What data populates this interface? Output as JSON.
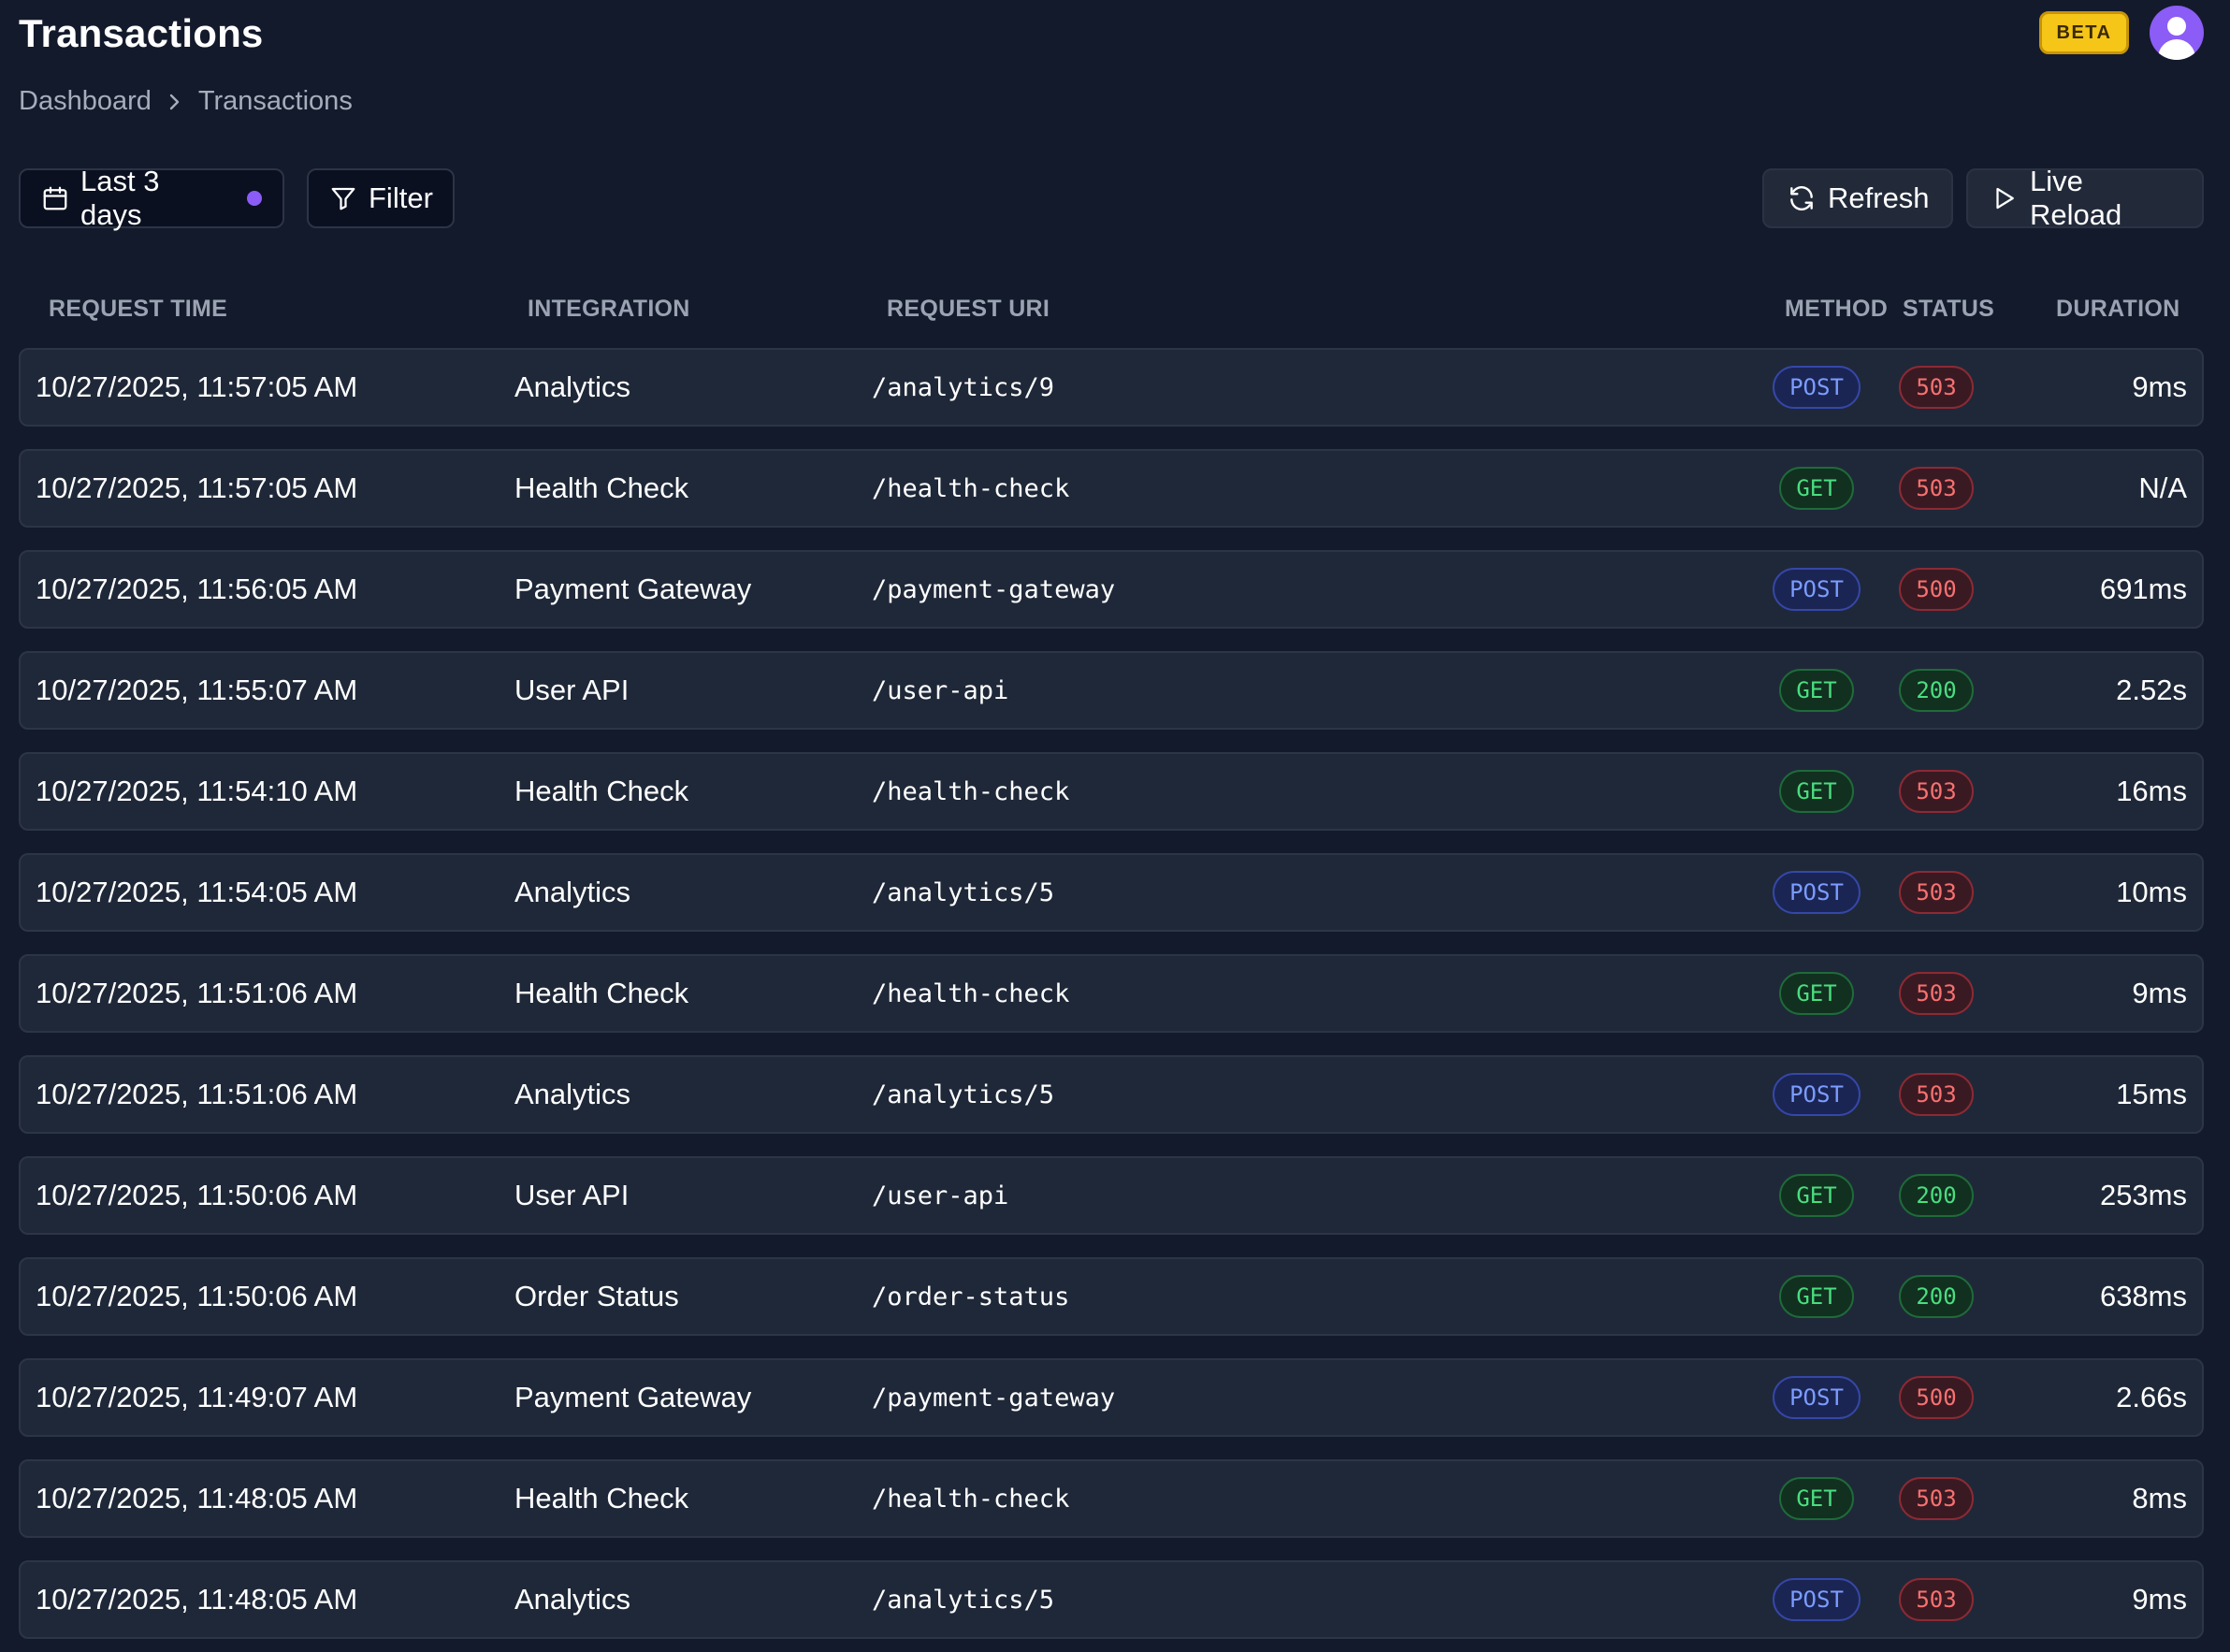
{
  "header": {
    "title": "Transactions",
    "beta_label": "BETA"
  },
  "breadcrumb": {
    "items": [
      "Dashboard",
      "Transactions"
    ]
  },
  "toolbar": {
    "date_range_label": "Last 3 days",
    "filter_label": "Filter",
    "refresh_label": "Refresh",
    "live_reload_label": "Live Reload"
  },
  "table": {
    "columns": {
      "request_time": "REQUEST TIME",
      "integration": "INTEGRATION",
      "request_uri": "REQUEST URI",
      "method": "METHOD",
      "status": "STATUS",
      "duration": "DURATION"
    },
    "rows": [
      {
        "time": "10/27/2025, 11:57:05 AM",
        "integration": "Analytics",
        "uri": "/analytics/9",
        "method": "POST",
        "status": "503",
        "duration": "9ms"
      },
      {
        "time": "10/27/2025, 11:57:05 AM",
        "integration": "Health Check",
        "uri": "/health-check",
        "method": "GET",
        "status": "503",
        "duration": "N/A"
      },
      {
        "time": "10/27/2025, 11:56:05 AM",
        "integration": "Payment Gateway",
        "uri": "/payment-gateway",
        "method": "POST",
        "status": "500",
        "duration": "691ms"
      },
      {
        "time": "10/27/2025, 11:55:07 AM",
        "integration": "User API",
        "uri": "/user-api",
        "method": "GET",
        "status": "200",
        "duration": "2.52s"
      },
      {
        "time": "10/27/2025, 11:54:10 AM",
        "integration": "Health Check",
        "uri": "/health-check",
        "method": "GET",
        "status": "503",
        "duration": "16ms"
      },
      {
        "time": "10/27/2025, 11:54:05 AM",
        "integration": "Analytics",
        "uri": "/analytics/5",
        "method": "POST",
        "status": "503",
        "duration": "10ms"
      },
      {
        "time": "10/27/2025, 11:51:06 AM",
        "integration": "Health Check",
        "uri": "/health-check",
        "method": "GET",
        "status": "503",
        "duration": "9ms"
      },
      {
        "time": "10/27/2025, 11:51:06 AM",
        "integration": "Analytics",
        "uri": "/analytics/5",
        "method": "POST",
        "status": "503",
        "duration": "15ms"
      },
      {
        "time": "10/27/2025, 11:50:06 AM",
        "integration": "User API",
        "uri": "/user-api",
        "method": "GET",
        "status": "200",
        "duration": "253ms"
      },
      {
        "time": "10/27/2025, 11:50:06 AM",
        "integration": "Order Status",
        "uri": "/order-status",
        "method": "GET",
        "status": "200",
        "duration": "638ms"
      },
      {
        "time": "10/27/2025, 11:49:07 AM",
        "integration": "Payment Gateway",
        "uri": "/payment-gateway",
        "method": "POST",
        "status": "500",
        "duration": "2.66s"
      },
      {
        "time": "10/27/2025, 11:48:05 AM",
        "integration": "Health Check",
        "uri": "/health-check",
        "method": "GET",
        "status": "503",
        "duration": "8ms"
      },
      {
        "time": "10/27/2025, 11:48:05 AM",
        "integration": "Analytics",
        "uri": "/analytics/5",
        "method": "POST",
        "status": "503",
        "duration": "9ms"
      }
    ]
  },
  "icons": {
    "calendar": "calendar-icon",
    "filter": "filter-icon",
    "refresh": "refresh-icon",
    "play": "play-icon",
    "chevron": "chevron-right-icon",
    "avatar": "user-icon"
  },
  "colors": {
    "background": "#131a2b",
    "row": "#1f2838",
    "accent": "#8b5cf6",
    "beta": "#f5c518",
    "post": "#7b9cff",
    "get": "#4ade80",
    "error": "#f87171",
    "ok": "#4ade80"
  }
}
